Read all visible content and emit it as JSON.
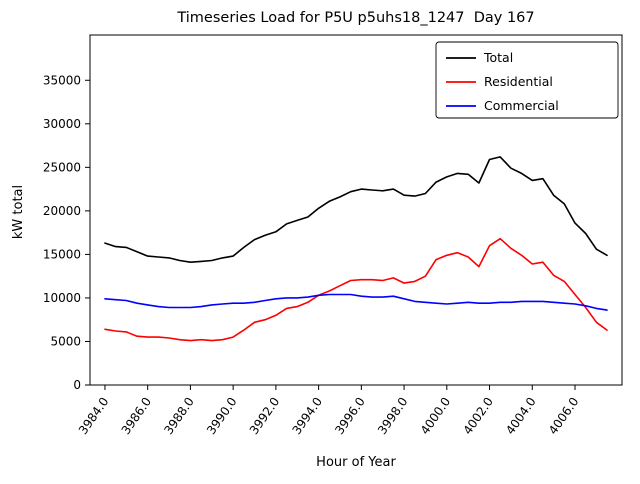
{
  "figure": {
    "title": "Timeseries Load for P5U p5uhs18_1247  Day 167",
    "xlabel": "Hour of Year",
    "ylabel": "kW total"
  },
  "chart_data": {
    "type": "line",
    "title": "Timeseries Load for P5U p5uhs18_1247  Day 167",
    "xlabel": "Hour of Year",
    "ylabel": "kW total",
    "xlim": [
      3983.3,
      4008.2
    ],
    "ylim": [
      0,
      40200
    ],
    "grid": false,
    "legend_position": "upper right",
    "xticks": [
      3984,
      3986,
      3988,
      3990,
      3992,
      3994,
      3996,
      3998,
      4000,
      4002,
      4004,
      4006
    ],
    "xtick_labels": [
      "3984.0",
      "3986.0",
      "3988.0",
      "3990.0",
      "3992.0",
      "3994.0",
      "3996.0",
      "3998.0",
      "4000.0",
      "4002.0",
      "4004.0",
      "4006.0"
    ],
    "yticks": [
      0,
      5000,
      10000,
      15000,
      20000,
      25000,
      30000,
      35000
    ],
    "ytick_labels": [
      "0",
      "5000",
      "10000",
      "15000",
      "20000",
      "25000",
      "30000",
      "35000"
    ],
    "x": [
      3984.0,
      3984.5,
      3985.0,
      3985.5,
      3986.0,
      3986.5,
      3987.0,
      3987.5,
      3988.0,
      3988.5,
      3989.0,
      3989.5,
      3990.0,
      3990.5,
      3991.0,
      3991.5,
      3992.0,
      3992.5,
      3993.0,
      3993.5,
      3994.0,
      3994.5,
      3995.0,
      3995.5,
      3996.0,
      3996.5,
      3997.0,
      3997.5,
      3998.0,
      3998.5,
      3999.0,
      3999.5,
      4000.0,
      4000.5,
      4001.0,
      4001.5,
      4002.0,
      4002.5,
      4003.0,
      4003.5,
      4004.0,
      4004.5,
      4005.0,
      4005.5,
      4006.0,
      4006.5,
      4007.0,
      4007.5
    ],
    "series": [
      {
        "name": "Total",
        "color": "#000000",
        "y": [
          16300,
          15900,
          15800,
          15300,
          14800,
          14700,
          14600,
          14300,
          14100,
          14200,
          14300,
          14600,
          14800,
          15800,
          16700,
          17200,
          17600,
          18500,
          18900,
          19300,
          20300,
          21100,
          21600,
          22200,
          22500,
          22400,
          22300,
          22500,
          21800,
          21700,
          22000,
          23300,
          23900,
          24300,
          24200,
          23200,
          25900,
          26200,
          24900,
          24300,
          23500,
          23700,
          21800,
          20800,
          18600,
          17400,
          15600,
          14900
        ]
      },
      {
        "name": "Residential",
        "color": "#ff0000",
        "y": [
          6400,
          6200,
          6100,
          5600,
          5500,
          5500,
          5400,
          5200,
          5100,
          5200,
          5100,
          5200,
          5500,
          6300,
          7200,
          7500,
          8000,
          8800,
          9000,
          9500,
          10300,
          10800,
          11400,
          12000,
          12100,
          12100,
          12000,
          12300,
          11700,
          11900,
          12500,
          14400,
          14900,
          15200,
          14700,
          13600,
          16000,
          16800,
          15700,
          14900,
          13900,
          14100,
          12600,
          11900,
          10400,
          8900,
          7200,
          6300
        ]
      },
      {
        "name": "Commercial",
        "color": "#0000ff",
        "y": [
          9900,
          9800,
          9700,
          9400,
          9200,
          9000,
          8900,
          8900,
          8900,
          9000,
          9200,
          9300,
          9400,
          9400,
          9500,
          9700,
          9900,
          10000,
          10000,
          10100,
          10300,
          10400,
          10400,
          10400,
          10200,
          10100,
          10100,
          10200,
          9900,
          9600,
          9500,
          9400,
          9300,
          9400,
          9500,
          9400,
          9400,
          9500,
          9500,
          9600,
          9600,
          9600,
          9500,
          9400,
          9300,
          9100,
          8800,
          8600
        ]
      }
    ]
  }
}
